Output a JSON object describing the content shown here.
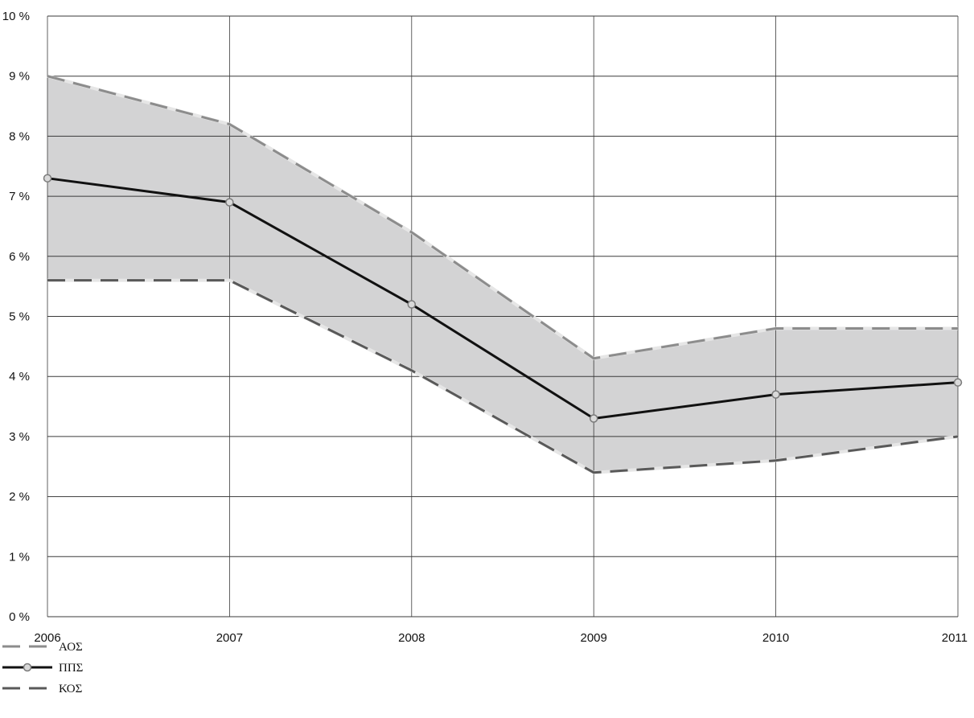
{
  "chart_data": {
    "type": "line",
    "title": "",
    "xlabel": "",
    "ylabel": "",
    "x": [
      "2006",
      "2007",
      "2008",
      "2009",
      "2010",
      "2011"
    ],
    "ylim": [
      0,
      10
    ],
    "yticks": [
      0,
      1,
      2,
      3,
      4,
      5,
      6,
      7,
      8,
      9,
      10
    ],
    "ytick_labels": [
      "0 %",
      "1 %",
      "2 %",
      "3 %",
      "4 %",
      "5 %",
      "6 %",
      "7 %",
      "8 %",
      "9 %",
      "10 %"
    ],
    "grid": true,
    "legend_position": "bottom-left",
    "band": {
      "upper_series": "ΑΟΣ",
      "lower_series": "ΚΟΣ",
      "fill_color": "#d3d3d4"
    },
    "series": [
      {
        "name": "ΑΟΣ",
        "values": [
          9.0,
          8.2,
          6.4,
          4.3,
          4.8,
          4.8
        ],
        "style": "dashed",
        "color": "#8c8c8c"
      },
      {
        "name": "ΠΠΣ",
        "values": [
          7.3,
          6.9,
          5.2,
          3.3,
          3.7,
          3.9
        ],
        "style": "solid-markers",
        "color": "#111111",
        "marker_fill": "#d9d9d9"
      },
      {
        "name": "ΚΟΣ",
        "values": [
          5.6,
          5.6,
          4.1,
          2.4,
          2.6,
          3.0
        ],
        "style": "dashed",
        "color": "#595959"
      }
    ]
  }
}
